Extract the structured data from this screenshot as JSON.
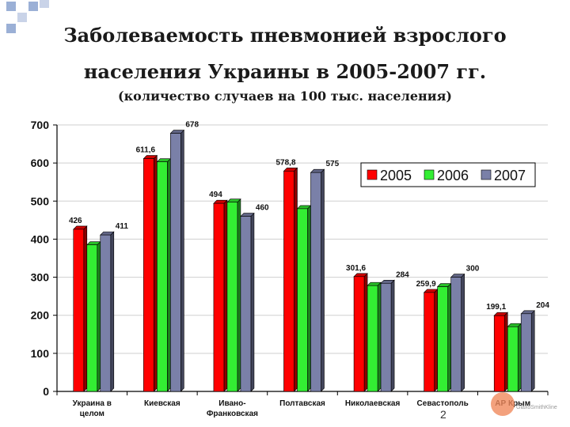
{
  "slide": {
    "title_line1": "Заболеваемость пневмонией  взрослого",
    "title_line2": "населения Украины в 2005-2007 гг.",
    "subtitle": "(количество случаев на 100 тыс. населения)",
    "page_number": "2",
    "logo_text": "GlaxoSmithKline",
    "accent_squares": [
      "#9bb0d6",
      "#ffffff",
      "#c9d3e8"
    ]
  },
  "chart_data": {
    "type": "bar",
    "title": "",
    "xlabel": "",
    "ylabel": "",
    "ylim": [
      0,
      700
    ],
    "yticks": [
      0,
      100,
      200,
      300,
      400,
      500,
      600,
      700
    ],
    "grid": true,
    "legend_position": "top-right",
    "categories": [
      [
        "Украина в",
        "целом"
      ],
      [
        "Киевская"
      ],
      [
        "Ивано-",
        "Франковская"
      ],
      [
        "Полтавская"
      ],
      [
        "Николаевская"
      ],
      [
        "Севастополь"
      ],
      [
        "АР Крым"
      ]
    ],
    "series": [
      {
        "name": "2005",
        "color": "#ff0000",
        "values": [
          426,
          611.6,
          494,
          578.8,
          301.6,
          259.9,
          199.1
        ]
      },
      {
        "name": "2006",
        "color": "#33ee33",
        "values": [
          385,
          603,
          497,
          480,
          278,
          275,
          170
        ]
      },
      {
        "name": "2007",
        "color": "#7a80a8",
        "values": [
          411,
          678,
          460,
          575,
          284,
          300,
          204
        ]
      }
    ],
    "data_labels": [
      {
        "category": 0,
        "series": 0,
        "text": "426"
      },
      {
        "category": 0,
        "series": 2,
        "text": "411"
      },
      {
        "category": 1,
        "series": 0,
        "text": "611,6"
      },
      {
        "category": 1,
        "series": 2,
        "text": "678"
      },
      {
        "category": 2,
        "series": 0,
        "text": "494"
      },
      {
        "category": 2,
        "series": 2,
        "text": "460"
      },
      {
        "category": 3,
        "series": 0,
        "text": "578,8"
      },
      {
        "category": 3,
        "series": 2,
        "text": "575"
      },
      {
        "category": 4,
        "series": 0,
        "text": "301,6"
      },
      {
        "category": 4,
        "series": 2,
        "text": "284"
      },
      {
        "category": 5,
        "series": 0,
        "text": "259,9"
      },
      {
        "category": 5,
        "series": 2,
        "text": "300"
      },
      {
        "category": 6,
        "series": 0,
        "text": "199,1"
      },
      {
        "category": 6,
        "series": 2,
        "text": "204"
      }
    ]
  }
}
